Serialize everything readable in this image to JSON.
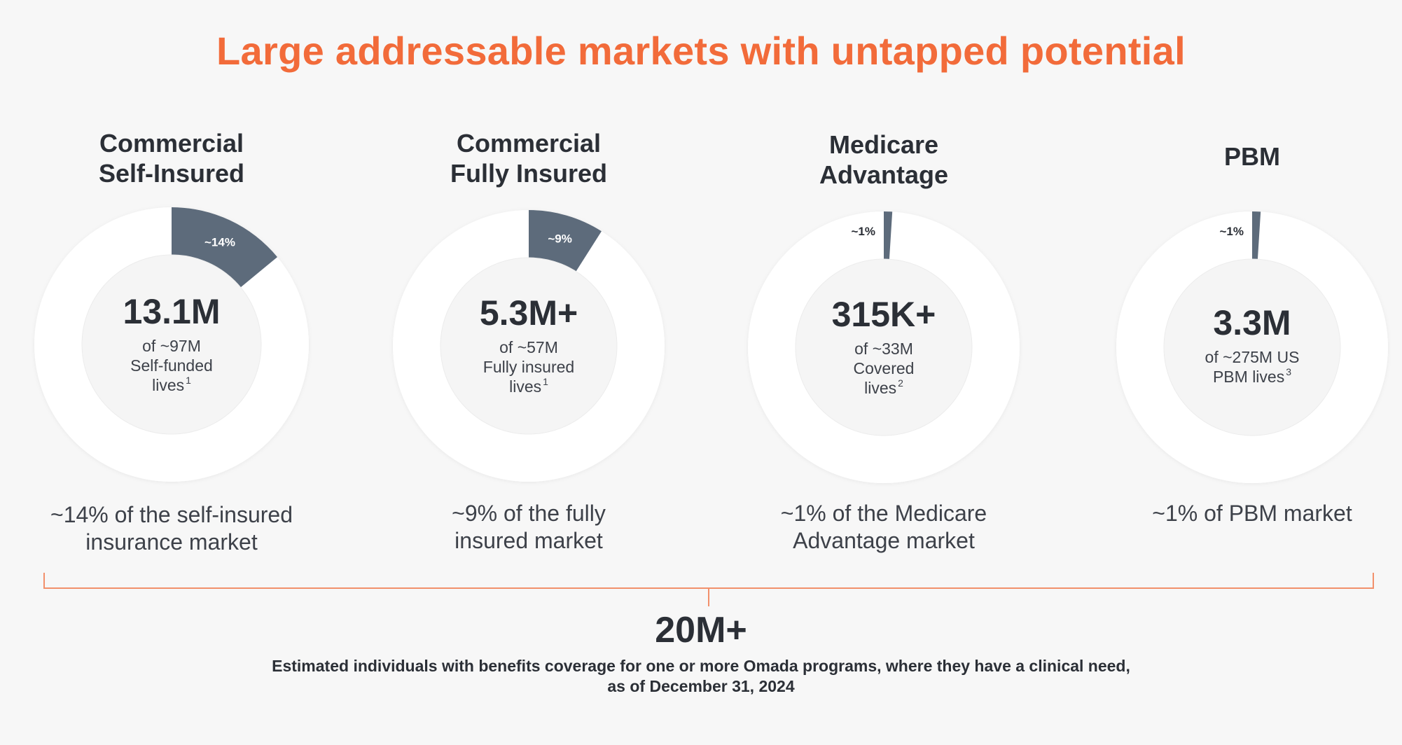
{
  "title": "Large addressable markets with untapped potential",
  "colors": {
    "title": "#f26b3a",
    "slice": "#5d6b7b",
    "ring": "#ffffff",
    "bracket": "#f2906b"
  },
  "chart_data": [
    {
      "type": "pie",
      "title_lines": [
        "Commercial",
        "Self-Insured"
      ],
      "slice_percent": 14,
      "slice_label": "~14%",
      "center_value": "13.1M",
      "center_lines": [
        "of ~97M",
        "Self-funded"
      ],
      "center_last": "lives",
      "center_sup": "1",
      "caption_lines": [
        "~14% of the self-insured",
        "insurance market"
      ]
    },
    {
      "type": "pie",
      "title_lines": [
        "Commercial",
        "Fully Insured"
      ],
      "slice_percent": 9,
      "slice_label": "~9%",
      "center_value": "5.3M+",
      "center_lines": [
        "of ~57M",
        "Fully insured"
      ],
      "center_last": "lives",
      "center_sup": "1",
      "caption_lines": [
        "~9% of the fully",
        "insured market"
      ]
    },
    {
      "type": "pie",
      "title_lines": [
        "Medicare",
        "Advantage"
      ],
      "slice_percent": 1,
      "slice_label": "~1%",
      "center_value": "315K+",
      "center_lines": [
        "of ~33M",
        "Covered"
      ],
      "center_last": "lives",
      "center_sup": "2",
      "caption_lines": [
        "~1% of the Medicare",
        "Advantage market"
      ]
    },
    {
      "type": "pie",
      "title_lines": [
        "PBM"
      ],
      "slice_percent": 1,
      "slice_label": "~1%",
      "center_value": "3.3M",
      "center_lines": [
        "of ~275M US"
      ],
      "center_last": "PBM lives",
      "center_sup": "3",
      "caption_lines": [
        "~1% of PBM market"
      ]
    }
  ],
  "total": {
    "value": "20M+",
    "description_lines": [
      "Estimated individuals with benefits coverage for one or more Omada programs, where they have a clinical need,",
      "as of December 31, 2024"
    ]
  }
}
